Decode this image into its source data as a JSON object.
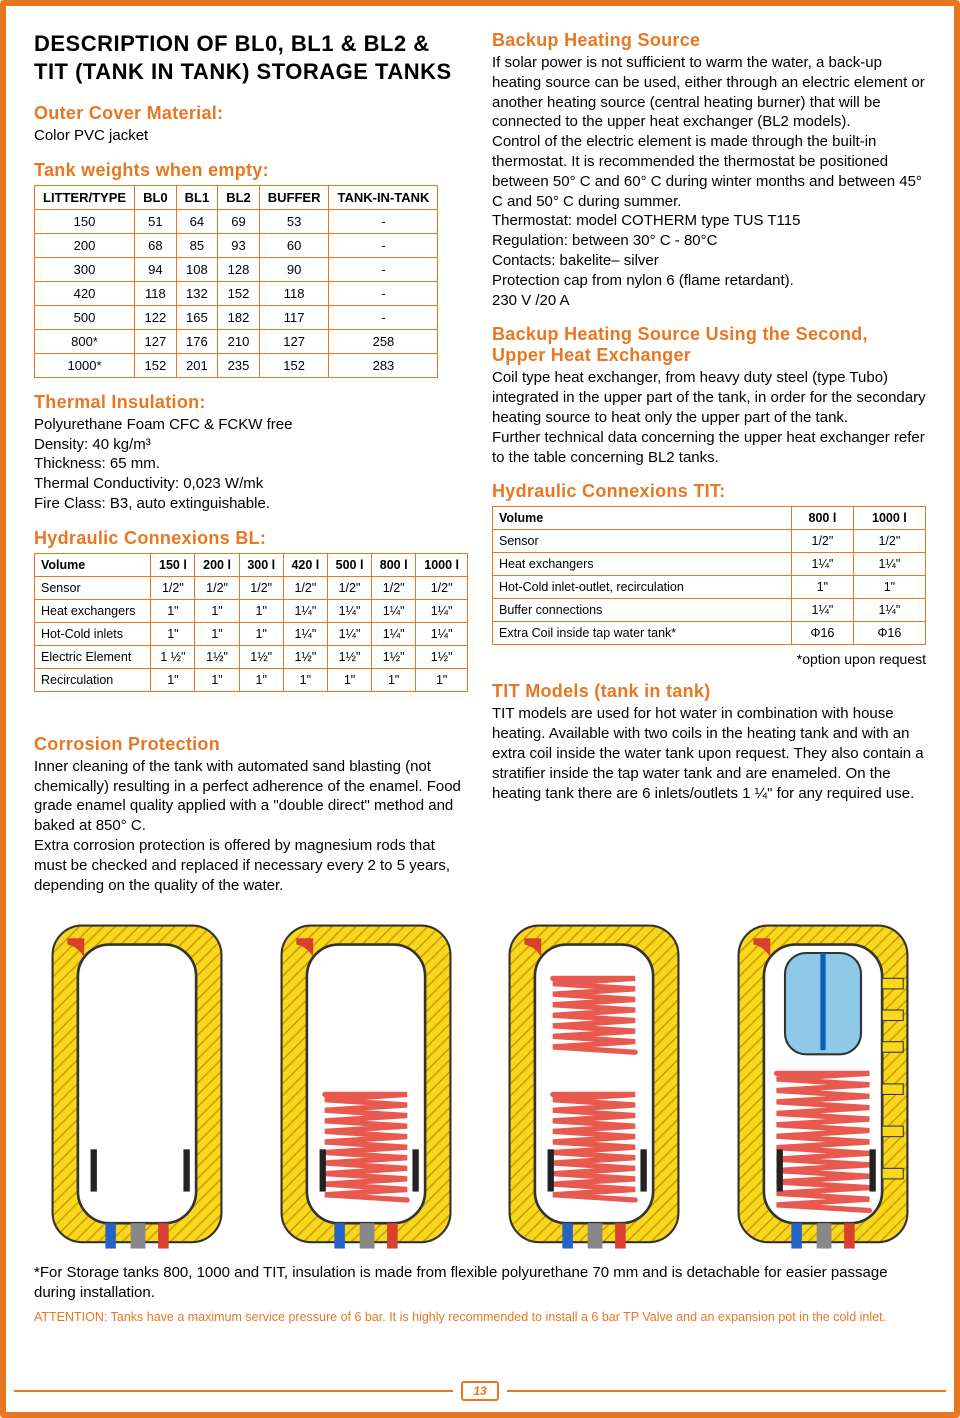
{
  "title": "DESCRIPTION OF BL0, BL1 & BL2 & TIT (TANK IN TANK) STORAGE TANKS",
  "left": {
    "outer_cover": {
      "heading": "Outer Cover Material:",
      "text": "Color PVC jacket"
    },
    "weights": {
      "heading": "Tank weights when empty:",
      "cols": [
        "LITTER/TYPE",
        "BL0",
        "BL1",
        "BL2",
        "BUFFER",
        "TANK-IN-TANK"
      ],
      "rows": [
        [
          "150",
          "51",
          "64",
          "69",
          "53",
          "-"
        ],
        [
          "200",
          "68",
          "85",
          "93",
          "60",
          "-"
        ],
        [
          "300",
          "94",
          "108",
          "128",
          "90",
          "-"
        ],
        [
          "420",
          "118",
          "132",
          "152",
          "118",
          "-"
        ],
        [
          "500",
          "122",
          "165",
          "182",
          "117",
          "-"
        ],
        [
          "800*",
          "127",
          "176",
          "210",
          "127",
          "258"
        ],
        [
          "1000*",
          "152",
          "201",
          "235",
          "152",
          "283"
        ]
      ]
    },
    "thermal": {
      "heading": "Thermal Insulation:",
      "lines": [
        "Polyurethane Foam CFC & FCKW free",
        "Density: 40 kg/m³",
        "Thickness: 65 mm.",
        "Thermal Conductivity: 0,023 W/mk",
        "Fire Class: B3, auto extinguishable."
      ]
    },
    "connBL": {
      "heading": "Hydraulic Connexions BL:",
      "cols": [
        "Volume",
        "150 l",
        "200 l",
        "300 l",
        "420 l",
        "500 l",
        "800 l",
        "1000 l"
      ],
      "rows": [
        [
          "Sensor",
          "1/2\"",
          "1/2\"",
          "1/2\"",
          "1/2\"",
          "1/2\"",
          "1/2\"",
          "1/2\""
        ],
        [
          "Heat exchangers",
          "1\"",
          "1\"",
          "1\"",
          "1¼\"",
          "1¼\"",
          "1¼\"",
          "1¼\""
        ],
        [
          "Hot-Cold inlets",
          "1\"",
          "1\"",
          "1\"",
          "1¼\"",
          "1¼\"",
          "1¼\"",
          "1¼\""
        ],
        [
          "Electric Element",
          "1 ½\"",
          "1½\"",
          "1½\"",
          "1½\"",
          "1½\"",
          "1½\"",
          "1½\""
        ],
        [
          "Recirculation",
          "1\"",
          "1\"",
          "1\"",
          "1\"",
          "1\"",
          "1\"",
          "1\""
        ]
      ]
    },
    "corrosion": {
      "heading": "Corrosion Protection",
      "text": "Inner cleaning of the tank with automated sand blasting (not chemically) resulting in a perfect adherence of the enamel. Food grade enamel quality applied with a \"double direct\" method and baked at 850° C.\nExtra corrosion protection is offered by magnesium rods that must be checked and replaced if necessary every 2 to 5 years, depending on the quality of the water."
    }
  },
  "right": {
    "backup": {
      "heading": "Backup Heating Source",
      "text": "If solar power is not sufficient to warm the water, a back-up heating source can be used, either through an electric element or another heating source (central heating burner) that will be connected to the upper heat exchanger (BL2 models).\nControl of the electric element is made through the built-in thermostat.  It is recommended the thermostat be positioned between 50° C and  60° C during winter months and between 45° C and 50° C during summer.\nThermostat:        model COTHERM  type TUS T115\nRegulation:         between 30° C - 80°C\nContacts:            bakelite– silver\nProtection cap from nylon 6 (flame retardant).\n230  V /20 A"
    },
    "backup2": {
      "heading": "Backup Heating Source Using the Second, Upper Heat Exchanger",
      "text": "Coil type heat exchanger, from heavy duty steel (type Tubo) integrated in the upper part of the tank, in order for the secondary heating source to heat only the upper part of the tank.\nFurther technical data concerning the upper heat exchanger refer to the table concerning BL2 tanks."
    },
    "connTIT": {
      "heading": "Hydraulic Connexions TIT:",
      "cols": [
        "Volume",
        "800 l",
        "1000 l"
      ],
      "rows": [
        [
          "Sensor",
          "1/2\"",
          "1/2\""
        ],
        [
          "Heat exchangers",
          "1¼\"",
          "1¼\""
        ],
        [
          "Hot-Cold inlet-outlet, recirculation",
          "1\"",
          "1\""
        ],
        [
          "Buffer connections",
          "1¼\"",
          "1¼\""
        ],
        [
          "Extra Coil inside tap water tank*",
          "Φ16",
          "Φ16"
        ]
      ],
      "note": "*option upon request"
    },
    "tit": {
      "heading": "TIT Models (tank in tank)",
      "text": "TIT models are used for hot water in combination with house heating. Available with two coils in the heating tank and with an extra coil inside the water tank upon request. They also contain a stratifier inside the tap water tank and are enameled. On the heating tank there are 6 inlets/outlets 1 ¼\" for any required use."
    }
  },
  "footnote1": "*For Storage tanks 800, 1000 and TIT, insulation is made from flexible polyurethane 70 mm and is detachable for easier passage during installation.",
  "footnote2": "ATTENTION: Tanks have a maximum service pressure of 6 bar. It is highly recommended to install a 6 bar TP Valve and an expansion pot in the cold inlet.",
  "page_number": "13",
  "colors": {
    "accent": "#e87722",
    "insulation": "#f9d71c",
    "hatch": "#c9a000",
    "coil": "#e85a4f",
    "tank_stroke": "#333333",
    "inner_tank": "#8ec9e8",
    "inlet_red": "#d9402d",
    "inlet_blue": "#2563c7",
    "anode": "#222222"
  },
  "diagrams": {
    "count": 4,
    "coils": [
      0,
      1,
      2,
      2
    ],
    "has_inner_tank": [
      false,
      false,
      false,
      true
    ]
  }
}
